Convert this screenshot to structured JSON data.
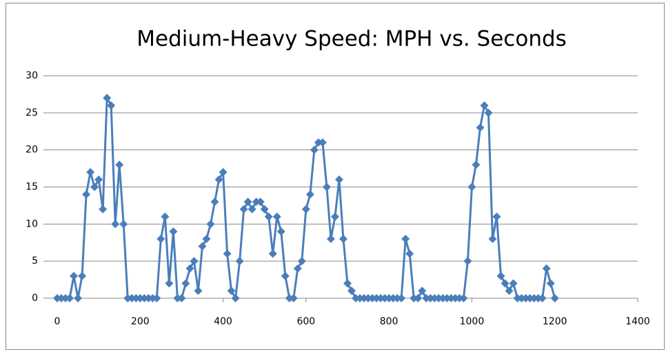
{
  "chart_data": {
    "type": "scatter",
    "title": "Medium-Heavy Speed: MPH vs. Seconds",
    "x": [
      0,
      10,
      20,
      30,
      40,
      50,
      60,
      70,
      80,
      90,
      100,
      110,
      120,
      130,
      140,
      150,
      160,
      170,
      180,
      190,
      200,
      210,
      220,
      230,
      240,
      250,
      260,
      270,
      280,
      290,
      300,
      310,
      320,
      330,
      340,
      350,
      360,
      370,
      380,
      390,
      400,
      410,
      420,
      430,
      440,
      450,
      460,
      470,
      480,
      490,
      500,
      510,
      520,
      530,
      540,
      550,
      560,
      570,
      580,
      590,
      600,
      610,
      620,
      630,
      640,
      650,
      660,
      670,
      680,
      690,
      700,
      710,
      720,
      730,
      740,
      750,
      760,
      770,
      780,
      790,
      800,
      810,
      820,
      830,
      840,
      850,
      860,
      870,
      880,
      890,
      900,
      910,
      920,
      930,
      940,
      950,
      960,
      970,
      980,
      990,
      1000,
      1010,
      1020,
      1030,
      1040,
      1050,
      1060,
      1070,
      1080,
      1090,
      1100,
      1110,
      1120,
      1130,
      1140,
      1150,
      1160,
      1170,
      1180,
      1190,
      1200
    ],
    "values": [
      0,
      0,
      0,
      0,
      3,
      0,
      3,
      14,
      17,
      15,
      16,
      12,
      27,
      26,
      10,
      18,
      10,
      0,
      0,
      0,
      0,
      0,
      0,
      0,
      0,
      8,
      11,
      2,
      9,
      0,
      0,
      2,
      4,
      5,
      1,
      7,
      8,
      10,
      13,
      16,
      17,
      6,
      1,
      0,
      5,
      12,
      13,
      12,
      13,
      13,
      12,
      11,
      6,
      11,
      9,
      3,
      0,
      0,
      4,
      5,
      12,
      14,
      20,
      21,
      21,
      15,
      8,
      11,
      16,
      8,
      2,
      1,
      0,
      0,
      0,
      0,
      0,
      0,
      0,
      0,
      0,
      0,
      0,
      0,
      8,
      6,
      0,
      0,
      1,
      0,
      0,
      0,
      0,
      0,
      0,
      0,
      0,
      0,
      0,
      5,
      15,
      18,
      23,
      26,
      25,
      8,
      11,
      3,
      2,
      1,
      2,
      0,
      0,
      0,
      0,
      0,
      0,
      0,
      4,
      2,
      0
    ],
    "color": "#4a7ebb",
    "xlim": [
      0,
      1400
    ],
    "xticks": [
      0,
      200,
      400,
      600,
      800,
      1000,
      1200,
      1400
    ],
    "ylim": [
      0,
      30
    ],
    "yticks": [
      0,
      5,
      10,
      15,
      20,
      25,
      30
    ],
    "grid": true
  }
}
